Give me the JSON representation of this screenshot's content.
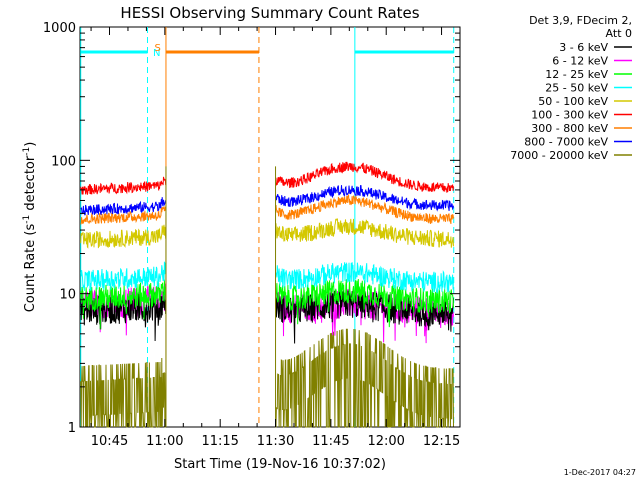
{
  "chart_data": {
    "type": "line",
    "title": "HESSI Observing Summary Count Rates",
    "xlabel": "Start Time (19-Nov-16 10:37:02)",
    "ylabel_main": "Count Rate (s",
    "ylabel_sup1": "-1",
    "ylabel_mid": " detector",
    "ylabel_sup2": "-1",
    "ylabel_end": ")",
    "yscale": "log",
    "ylim": [
      1,
      1000
    ],
    "xlim_minutes": [
      37,
      140
    ],
    "x_ticks": [
      {
        "label": "10:45",
        "minute": 45
      },
      {
        "label": "11:00",
        "minute": 60
      },
      {
        "label": "11:15",
        "minute": 75
      },
      {
        "label": "11:30",
        "minute": 90
      },
      {
        "label": "11:45",
        "minute": 105
      },
      {
        "label": "12:00",
        "minute": 120
      },
      {
        "label": "12:15",
        "minute": 135
      }
    ],
    "y_ticks": [
      {
        "label": "1",
        "value": 1
      },
      {
        "label": "10",
        "value": 10
      },
      {
        "label": "100",
        "value": 100
      },
      {
        "label": "1000",
        "value": 1000
      }
    ],
    "legend": {
      "header": [
        "Det 3,9, FDecim 2,",
        "Att 0"
      ],
      "placement": "right"
    },
    "gaps_minutes": [
      [
        60.3,
        90
      ]
    ],
    "series": [
      {
        "name": "3 - 6 keV",
        "color": "#000000",
        "pre": 7.4,
        "post": 7.6,
        "peak": 8.4,
        "noise": 0.07
      },
      {
        "name": "6 - 12 keV",
        "color": "#ff00ff",
        "pre": 8.3,
        "post": 7.8,
        "peak": 8.4,
        "noise": 0.07
      },
      {
        "name": "12 - 25 keV",
        "color": "#00ff00",
        "pre": 9.2,
        "post": 9.3,
        "peak": 10.5,
        "noise": 0.06
      },
      {
        "name": "25 - 50 keV",
        "color": "#00ffff",
        "pre": 12.5,
        "post": 12.8,
        "peak": 14.5,
        "noise": 0.05
      },
      {
        "name": "50 - 100 keV",
        "color": "#d4c800",
        "pre": 25,
        "post": 27,
        "peak": 32,
        "noise": 0.04
      },
      {
        "name": "100 - 300 keV",
        "color": "#ff0000",
        "pre": 60,
        "post": 65,
        "peak": 90,
        "noise": 0.025
      },
      {
        "name": "300 - 800 keV",
        "color": "#ff7f00",
        "pre": 36,
        "post": 38,
        "peak": 50,
        "noise": 0.025
      },
      {
        "name": "800 - 7000 keV",
        "color": "#0000ff",
        "pre": 42,
        "post": 48,
        "peak": 60,
        "noise": 0.025
      },
      {
        "name": "7000 - 20000 keV",
        "color": "#808000",
        "pre": 2.2,
        "post": 2.2,
        "peak": 4.2,
        "noise": 0.0
      }
    ],
    "flags": [
      {
        "label": "N",
        "color": "#00ffff"
      },
      {
        "label": "S",
        "color": "#ff7f00"
      }
    ]
  },
  "footer_timestamp": "1-Dec-2017 04:27"
}
